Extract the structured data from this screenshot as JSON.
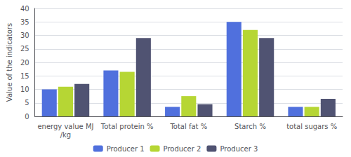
{
  "chart_data": {
    "type": "bar",
    "ylabel": "Value of the indicators",
    "categories": [
      "energy value MJ/kg",
      "Total protein %",
      "Total fat %",
      "Starch %",
      "total sugars %"
    ],
    "series": [
      {
        "name": "Producer 1",
        "values": [
          10,
          17,
          3.5,
          35,
          3.5
        ]
      },
      {
        "name": "Producer 2",
        "values": [
          11,
          16.5,
          7.5,
          32,
          3.5
        ]
      },
      {
        "name": "Producer 3",
        "values": [
          12,
          29,
          4.5,
          29,
          6.5
        ]
      }
    ],
    "ylim": [
      0,
      40
    ],
    "yticks": [
      0,
      5,
      10,
      15,
      20,
      25,
      30,
      35,
      40
    ],
    "grid": true,
    "legend": "bottom"
  }
}
